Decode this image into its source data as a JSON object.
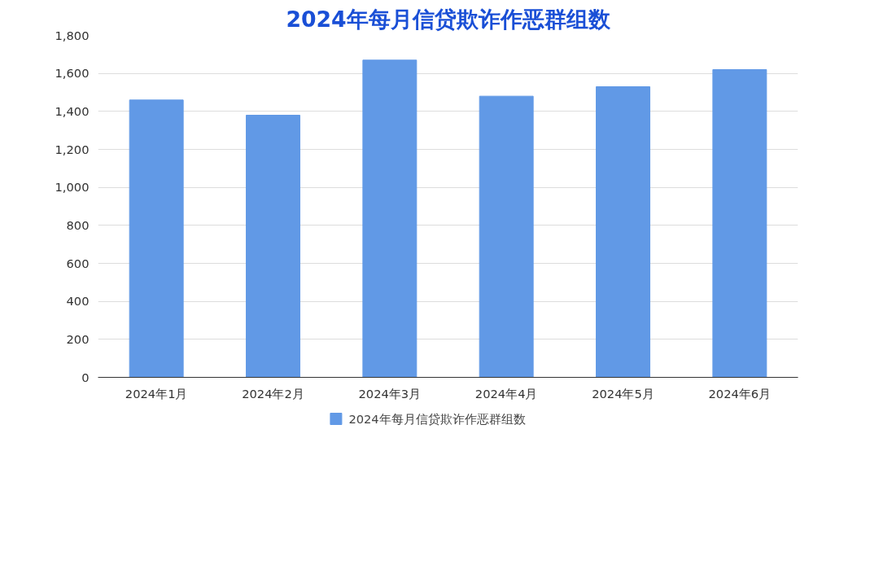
{
  "chart_data": {
    "type": "bar",
    "title": "2024年每月信贷欺诈作恶群组数",
    "categories": [
      "2024年1月",
      "2024年2月",
      "2024年3月",
      "2024年4月",
      "2024年5月",
      "2024年6月"
    ],
    "series": [
      {
        "name": "2024年每月信贷欺诈作恶群组数",
        "color": "#6199e6",
        "values": [
          1460,
          1380,
          1670,
          1480,
          1530,
          1620
        ]
      }
    ],
    "ylim": [
      0,
      1800
    ],
    "yticks": [
      {
        "value": 0,
        "label": "0"
      },
      {
        "value": 200,
        "label": "200"
      },
      {
        "value": 400,
        "label": "400"
      },
      {
        "value": 600,
        "label": "600"
      },
      {
        "value": 800,
        "label": "800"
      },
      {
        "value": 1000,
        "label": "1,000"
      },
      {
        "value": 1200,
        "label": "1,200"
      },
      {
        "value": 1400,
        "label": "1,400"
      },
      {
        "value": 1600,
        "label": "1,600"
      },
      {
        "value": 1800,
        "label": "1,800"
      }
    ],
    "grid": "y",
    "legend": "bottom"
  }
}
